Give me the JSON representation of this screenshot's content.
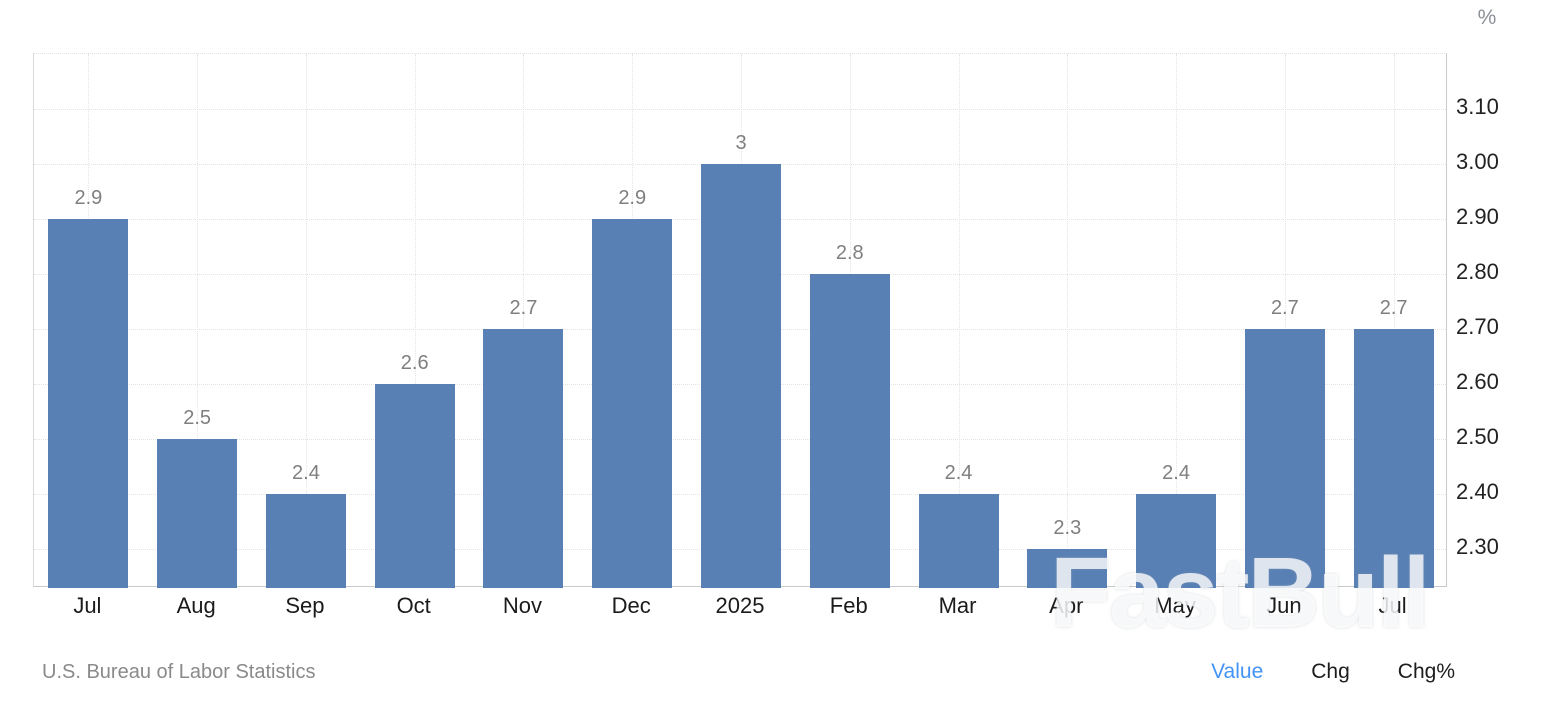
{
  "page": {
    "unit_label": "%",
    "watermark": "FastBull",
    "source": "U.S. Bureau of Labor Statistics",
    "footer_links": [
      {
        "label": "Value",
        "active": true
      },
      {
        "label": "Chg",
        "active": false
      },
      {
        "label": "Chg%",
        "active": false
      }
    ],
    "colors": {
      "bar": "#5880b5",
      "active_link": "#4293f5",
      "link": "#1c1c1c",
      "value_label": "#7f7f7f",
      "axis_tick": "#222222",
      "muted": "#8a8a8a"
    }
  },
  "chart_data": {
    "type": "bar",
    "title": "",
    "categories": [
      "Jul",
      "Aug",
      "Sep",
      "Oct",
      "Nov",
      "Dec",
      "2025",
      "Feb",
      "Mar",
      "Apr",
      "May",
      "Jun",
      "Jul"
    ],
    "values": [
      2.9,
      2.5,
      2.4,
      2.6,
      2.7,
      2.9,
      3,
      2.8,
      2.4,
      2.3,
      2.4,
      2.7,
      2.7
    ],
    "value_labels": [
      "2.9",
      "2.5",
      "2.4",
      "2.6",
      "2.7",
      "2.9",
      "3",
      "2.8",
      "2.4",
      "2.3",
      "2.4",
      "2.7",
      "2.7"
    ],
    "xlabel": "",
    "ylabel": "%",
    "y_tick_labels": [
      "2.30",
      "2.40",
      "2.50",
      "2.60",
      "2.70",
      "2.80",
      "2.90",
      "3.00",
      "3.10"
    ],
    "y_tick_values": [
      2.3,
      2.4,
      2.5,
      2.6,
      2.7,
      2.8,
      2.9,
      3.0,
      3.1
    ],
    "ylim": [
      2.23,
      3.2
    ],
    "grid": true,
    "legend_position": "none",
    "yaxis_side": "right",
    "source": "U.S. Bureau of Labor Statistics"
  }
}
